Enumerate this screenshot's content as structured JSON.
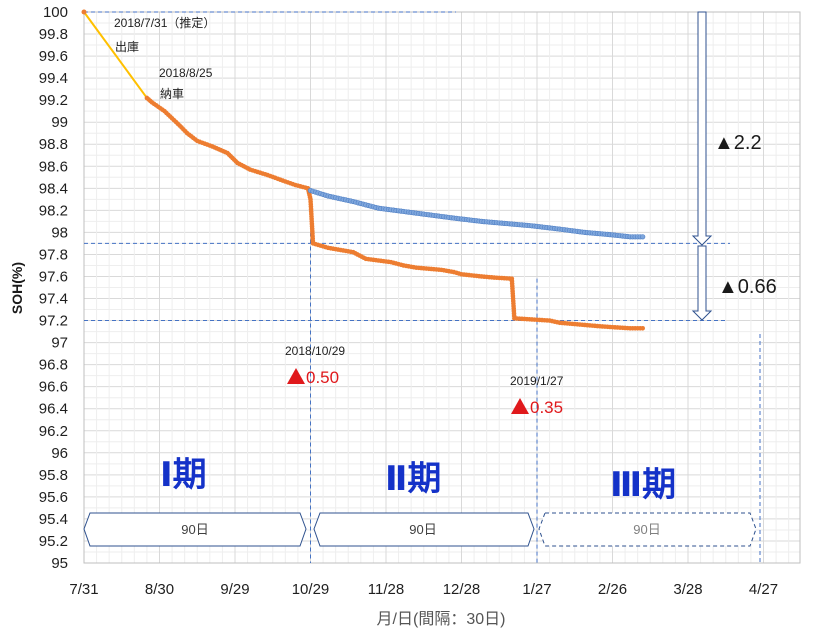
{
  "chart_data": {
    "type": "scatter",
    "xlabel": "月/日(間隔：30日)",
    "ylabel": "SOH(%)",
    "ylim": [
      95,
      100
    ],
    "y_ticks": [
      "100",
      "99.8",
      "99.6",
      "99.4",
      "99.2",
      "99",
      "98.8",
      "98.6",
      "98.4",
      "98.2",
      "98",
      "97.8",
      "97.6",
      "97.4",
      "97.2",
      "97",
      "96.8",
      "96.6",
      "96.4",
      "96.2",
      "96",
      "95.8",
      "95.6",
      "95.4",
      "95.2",
      "95"
    ],
    "x_tick_labels": [
      "7/31",
      "8/30",
      "9/29",
      "10/29",
      "11/28",
      "12/28",
      "1/27",
      "2/26",
      "3/28",
      "4/27"
    ],
    "grid": true,
    "series": [
      {
        "color": "#ed7d31",
        "points": [
          [
            "7/31",
            100
          ],
          [
            "8/25",
            99.22
          ],
          [
            "8/27",
            99.18
          ],
          [
            "9/1",
            99.1
          ],
          [
            "9/7",
            98.97
          ],
          [
            "9/10",
            98.9
          ],
          [
            "9/14",
            98.83
          ],
          [
            "9/20",
            98.78
          ],
          [
            "9/26",
            98.72
          ],
          [
            "9/30",
            98.63
          ],
          [
            "10/5",
            98.57
          ],
          [
            "10/12",
            98.52
          ],
          [
            "10/18",
            98.47
          ],
          [
            "10/23",
            98.43
          ],
          [
            "10/28",
            98.4
          ],
          [
            "10/29",
            98.3
          ],
          [
            "10/30",
            97.9
          ],
          [
            "11/5",
            97.86
          ],
          [
            "11/15",
            97.82
          ],
          [
            "11/20",
            97.76
          ],
          [
            "11/30",
            97.73
          ],
          [
            "12/5",
            97.7
          ],
          [
            "12/10",
            97.68
          ],
          [
            "12/20",
            97.66
          ],
          [
            "12/25",
            97.64
          ],
          [
            "12/28",
            97.62
          ],
          [
            "1/5",
            97.6
          ],
          [
            "1/10",
            97.59
          ],
          [
            "1/17",
            97.58
          ],
          [
            "1/18",
            97.22
          ],
          [
            "1/25",
            97.21
          ],
          [
            "2/1",
            97.2
          ],
          [
            "2/5",
            97.18
          ],
          [
            "2/15",
            97.16
          ],
          [
            "2/20",
            97.15
          ],
          [
            "2/26",
            97.14
          ],
          [
            "3/5",
            97.13
          ],
          [
            "3/10",
            97.13
          ]
        ]
      },
      {
        "color": "#7ea6dc",
        "points": [
          [
            "10/29",
            98.38
          ],
          [
            "11/5",
            98.33
          ],
          [
            "11/15",
            98.28
          ],
          [
            "11/25",
            98.22
          ],
          [
            "12/5",
            98.19
          ],
          [
            "12/15",
            98.16
          ],
          [
            "12/25",
            98.13
          ],
          [
            "1/5",
            98.1
          ],
          [
            "1/15",
            98.08
          ],
          [
            "1/25",
            98.06
          ],
          [
            "2/5",
            98.03
          ],
          [
            "2/15",
            98.0
          ],
          [
            "2/25",
            97.98
          ],
          [
            "3/5",
            97.96
          ],
          [
            "3/10",
            97.96
          ]
        ]
      },
      {
        "color": "#ffc000",
        "points": [
          [
            "7/31",
            100
          ],
          [
            "8/25",
            99.22
          ]
        ]
      }
    ],
    "annotations": {
      "start_date": "2018/7/31（推定）",
      "start_label": "出庫",
      "delivery_date": "2018/8/25",
      "delivery_label": "納車",
      "drop1_date": "2018/10/29",
      "drop1_value": "0.50",
      "drop2_date": "2019/1/27",
      "drop2_value": "0.35",
      "delta_total": "▲2.2",
      "delta_jump": "▲0.66",
      "period1": "Ⅰ期",
      "period2": "Ⅱ期",
      "period3": "Ⅲ期",
      "period_days": [
        "90日",
        "90日",
        "90日"
      ]
    }
  },
  "colors": {
    "orange": "#ed7d31",
    "blue_light": "#7ea6dc",
    "yellow": "#ffc000",
    "red": "#e0191c",
    "period_blue": "#1432c8",
    "grid": "#d9d9d9",
    "dash": "#4472c4",
    "arrow": "#2f528f"
  }
}
